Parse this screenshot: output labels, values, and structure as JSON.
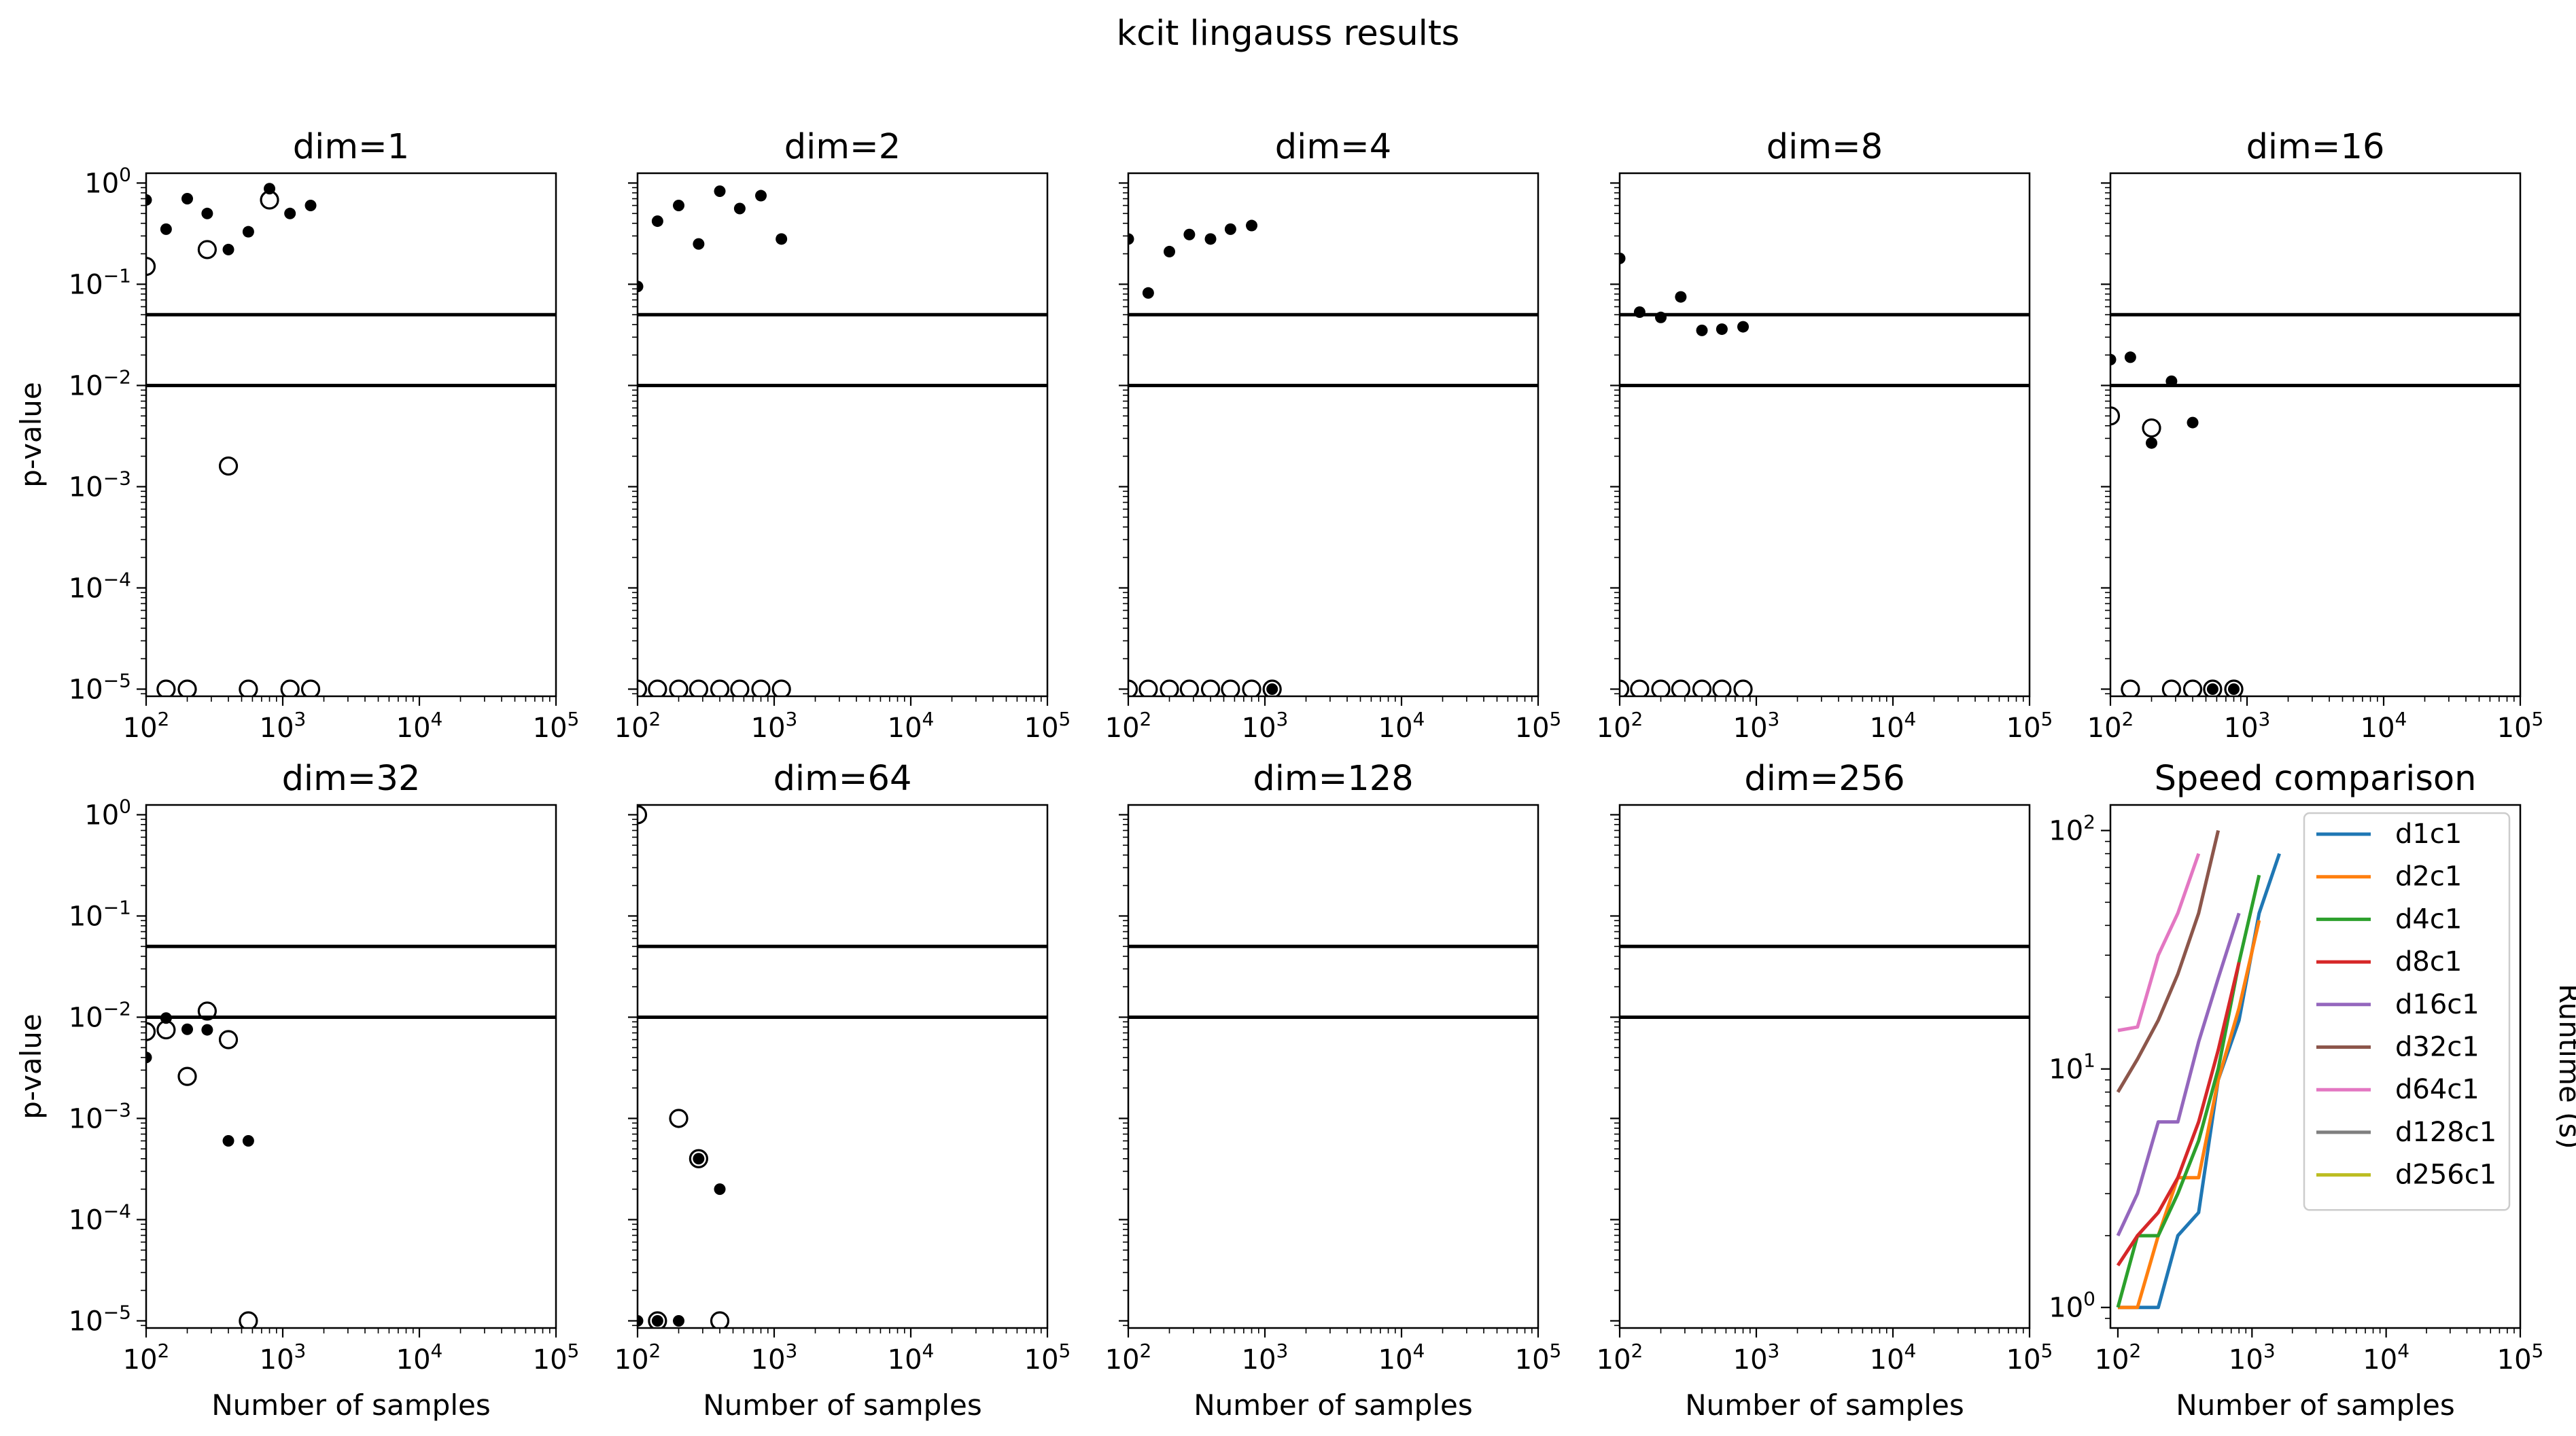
{
  "figure": {
    "title": "kcit lingauss results",
    "line_colors": {
      "d1c1": "#1f77b4",
      "d2c1": "#ff7f0e",
      "d4c1": "#2ca02c",
      "d8c1": "#d62728",
      "d16c1": "#9467bd",
      "d32c1": "#8c564b",
      "d64c1": "#e377c2",
      "d128c1": "#7f7f7f",
      "d256c1": "#bcbd22"
    }
  },
  "chart_data": [
    {
      "type": "scatter",
      "title": "dim=1",
      "xlabel": "",
      "ylabel": "p-value",
      "xscale": "log",
      "yscale": "log",
      "xlim": [
        100,
        100000
      ],
      "ylim": [
        8.5e-06,
        1.25
      ],
      "xticks": [
        "10^2",
        "10^3",
        "10^4",
        "10^5"
      ],
      "yticks": [
        "10^0",
        "10^-1",
        "10^-2",
        "10^-3",
        "10^-4",
        "10^-5"
      ],
      "hlines": [
        0.05,
        0.01
      ],
      "series": [
        {
          "marker": "filled-dot",
          "points": [
            [
              100,
              0.68
            ],
            [
              140,
              0.35
            ],
            [
              200,
              0.7
            ],
            [
              280,
              0.5
            ],
            [
              400,
              0.22
            ],
            [
              560,
              0.33
            ],
            [
              800,
              0.88
            ],
            [
              1130,
              0.5
            ],
            [
              1600,
              0.6
            ]
          ]
        },
        {
          "marker": "open-circle",
          "points": [
            [
              100,
              0.15
            ],
            [
              140,
              1e-05
            ],
            [
              200,
              1e-05
            ],
            [
              280,
              0.22
            ],
            [
              400,
              0.0016
            ],
            [
              560,
              1e-05
            ],
            [
              800,
              0.68
            ],
            [
              1130,
              1e-05
            ],
            [
              1600,
              1e-05
            ]
          ]
        }
      ]
    },
    {
      "type": "scatter",
      "title": "dim=2",
      "xlabel": "",
      "ylabel": "",
      "xscale": "log",
      "yscale": "log",
      "xlim": [
        100,
        100000
      ],
      "ylim": [
        8.5e-06,
        1.25
      ],
      "xticks": [
        "10^2",
        "10^3",
        "10^4",
        "10^5"
      ],
      "yticks": [],
      "hlines": [
        0.05,
        0.01
      ],
      "series": [
        {
          "marker": "filled-dot",
          "points": [
            [
              100,
              0.095
            ],
            [
              140,
              0.42
            ],
            [
              200,
              0.6
            ],
            [
              280,
              0.25
            ],
            [
              400,
              0.83
            ],
            [
              560,
              0.56
            ],
            [
              800,
              0.75
            ],
            [
              1130,
              0.28
            ]
          ]
        },
        {
          "marker": "open-circle",
          "points": [
            [
              100,
              1e-05
            ],
            [
              140,
              1e-05
            ],
            [
              200,
              1e-05
            ],
            [
              280,
              1e-05
            ],
            [
              400,
              1e-05
            ],
            [
              560,
              1e-05
            ],
            [
              800,
              1e-05
            ],
            [
              1130,
              1e-05
            ]
          ]
        }
      ]
    },
    {
      "type": "scatter",
      "title": "dim=4",
      "xlabel": "",
      "ylabel": "",
      "xscale": "log",
      "yscale": "log",
      "xlim": [
        100,
        100000
      ],
      "ylim": [
        8.5e-06,
        1.25
      ],
      "xticks": [
        "10^2",
        "10^3",
        "10^4",
        "10^5"
      ],
      "yticks": [],
      "hlines": [
        0.05,
        0.01
      ],
      "series": [
        {
          "marker": "filled-dot",
          "points": [
            [
              100,
              0.28
            ],
            [
              140,
              0.082
            ],
            [
              200,
              0.21
            ],
            [
              280,
              0.31
            ],
            [
              400,
              0.28
            ],
            [
              560,
              0.35
            ],
            [
              800,
              0.38
            ],
            [
              1130,
              1e-05
            ]
          ]
        },
        {
          "marker": "open-circle",
          "points": [
            [
              100,
              1e-05
            ],
            [
              140,
              1e-05
            ],
            [
              200,
              1e-05
            ],
            [
              280,
              1e-05
            ],
            [
              400,
              1e-05
            ],
            [
              560,
              1e-05
            ],
            [
              800,
              1e-05
            ],
            [
              1130,
              1e-05
            ]
          ]
        }
      ]
    },
    {
      "type": "scatter",
      "title": "dim=8",
      "xlabel": "",
      "ylabel": "",
      "xscale": "log",
      "yscale": "log",
      "xlim": [
        100,
        100000
      ],
      "ylim": [
        8.5e-06,
        1.25
      ],
      "xticks": [
        "10^2",
        "10^3",
        "10^4",
        "10^5"
      ],
      "yticks": [],
      "hlines": [
        0.05,
        0.01
      ],
      "series": [
        {
          "marker": "filled-dot",
          "points": [
            [
              100,
              0.18
            ],
            [
              140,
              0.053
            ],
            [
              200,
              0.047
            ],
            [
              280,
              0.075
            ],
            [
              400,
              0.035
            ],
            [
              560,
              0.036
            ],
            [
              800,
              0.038
            ]
          ]
        },
        {
          "marker": "open-circle",
          "points": [
            [
              100,
              1e-05
            ],
            [
              140,
              1e-05
            ],
            [
              200,
              1e-05
            ],
            [
              280,
              1e-05
            ],
            [
              400,
              1e-05
            ],
            [
              560,
              1e-05
            ],
            [
              800,
              1e-05
            ]
          ]
        }
      ]
    },
    {
      "type": "scatter",
      "title": "dim=16",
      "xlabel": "",
      "ylabel": "",
      "xscale": "log",
      "yscale": "log",
      "xlim": [
        100,
        100000
      ],
      "ylim": [
        8.5e-06,
        1.25
      ],
      "xticks": [
        "10^2",
        "10^3",
        "10^4",
        "10^5"
      ],
      "yticks": [],
      "hlines": [
        0.05,
        0.01
      ],
      "series": [
        {
          "marker": "filled-dot",
          "points": [
            [
              100,
              0.018
            ],
            [
              140,
              0.019
            ],
            [
              200,
              0.0027
            ],
            [
              280,
              0.011
            ],
            [
              400,
              0.0043
            ],
            [
              560,
              1e-05
            ],
            [
              800,
              1e-05
            ]
          ]
        },
        {
          "marker": "open-circle",
          "points": [
            [
              100,
              0.005
            ],
            [
              140,
              1e-05
            ],
            [
              200,
              0.0038
            ],
            [
              280,
              1e-05
            ],
            [
              400,
              1e-05
            ],
            [
              560,
              1e-05
            ],
            [
              800,
              1e-05
            ]
          ]
        }
      ]
    },
    {
      "type": "scatter",
      "title": "dim=32",
      "xlabel": "Number of samples",
      "ylabel": "p-value",
      "xscale": "log",
      "yscale": "log",
      "xlim": [
        100,
        100000
      ],
      "ylim": [
        8.5e-06,
        1.25
      ],
      "xticks": [
        "10^2",
        "10^3",
        "10^4",
        "10^5"
      ],
      "yticks": [
        "10^0",
        "10^-1",
        "10^-2",
        "10^-3",
        "10^-4",
        "10^-5"
      ],
      "hlines": [
        0.05,
        0.01
      ],
      "series": [
        {
          "marker": "filled-dot",
          "points": [
            [
              100,
              0.004
            ],
            [
              140,
              0.0098
            ],
            [
              200,
              0.0076
            ],
            [
              280,
              0.0075
            ],
            [
              400,
              0.0006
            ],
            [
              560,
              0.0006
            ]
          ]
        },
        {
          "marker": "open-circle",
          "points": [
            [
              100,
              0.0072
            ],
            [
              140,
              0.0075
            ],
            [
              200,
              0.0026
            ],
            [
              280,
              0.0115
            ],
            [
              400,
              0.006
            ],
            [
              560,
              1e-05
            ]
          ]
        }
      ]
    },
    {
      "type": "scatter",
      "title": "dim=64",
      "xlabel": "Number of samples",
      "ylabel": "",
      "xscale": "log",
      "yscale": "log",
      "xlim": [
        100,
        100000
      ],
      "ylim": [
        8.5e-06,
        1.25
      ],
      "xticks": [
        "10^2",
        "10^3",
        "10^4",
        "10^5"
      ],
      "yticks": [],
      "hlines": [
        0.05,
        0.01
      ],
      "series": [
        {
          "marker": "filled-dot",
          "points": [
            [
              100,
              1e-05
            ],
            [
              140,
              1e-05
            ],
            [
              200,
              1e-05
            ],
            [
              280,
              0.0004
            ],
            [
              400,
              0.0002
            ]
          ]
        },
        {
          "marker": "open-circle",
          "points": [
            [
              100,
              1.0
            ],
            [
              140,
              1e-05
            ],
            [
              200,
              0.001
            ],
            [
              280,
              0.0004
            ],
            [
              400,
              1e-05
            ]
          ]
        }
      ]
    },
    {
      "type": "scatter",
      "title": "dim=128",
      "xlabel": "Number of samples",
      "ylabel": "",
      "xscale": "log",
      "yscale": "log",
      "xlim": [
        100,
        100000
      ],
      "ylim": [
        8.5e-06,
        1.25
      ],
      "xticks": [
        "10^2",
        "10^3",
        "10^4",
        "10^5"
      ],
      "yticks": [],
      "hlines": [
        0.05,
        0.01
      ],
      "series": []
    },
    {
      "type": "scatter",
      "title": "dim=256",
      "xlabel": "Number of samples",
      "ylabel": "",
      "xscale": "log",
      "yscale": "log",
      "xlim": [
        100,
        100000
      ],
      "ylim": [
        8.5e-06,
        1.25
      ],
      "xticks": [
        "10^2",
        "10^3",
        "10^4",
        "10^5"
      ],
      "yticks": [],
      "hlines": [
        0.05,
        0.01
      ],
      "series": []
    },
    {
      "type": "line",
      "title": "Speed comparison",
      "xlabel": "Number of samples",
      "ylabel": "Runtime (s)",
      "ylabel_position": "right",
      "xscale": "log",
      "yscale": "log",
      "xlim": [
        88,
        100000
      ],
      "ylim": [
        0.82,
        128
      ],
      "xticks": [
        "10^2",
        "10^3",
        "10^4",
        "10^5"
      ],
      "yticks": [
        "10^2",
        "10^1",
        "10^0"
      ],
      "legend": "top-right",
      "series": [
        {
          "name": "d1c1",
          "x": [
            100,
            140,
            200,
            280,
            400,
            560,
            800,
            1130,
            1600
          ],
          "values": [
            1,
            1,
            1,
            2,
            2.5,
            9,
            16,
            45,
            80
          ]
        },
        {
          "name": "d2c1",
          "x": [
            100,
            140,
            200,
            280,
            400,
            560,
            800,
            1130
          ],
          "values": [
            1,
            1,
            2,
            3.5,
            3.5,
            9,
            18,
            42
          ]
        },
        {
          "name": "d4c1",
          "x": [
            100,
            140,
            200,
            280,
            400,
            560,
            800,
            1130
          ],
          "values": [
            1,
            2,
            2,
            3,
            5,
            10,
            28,
            65
          ]
        },
        {
          "name": "d8c1",
          "x": [
            100,
            140,
            200,
            280,
            400,
            560,
            800
          ],
          "values": [
            1.5,
            2,
            2.5,
            3.5,
            6,
            12,
            28
          ]
        },
        {
          "name": "d16c1",
          "x": [
            100,
            140,
            200,
            280,
            400,
            560,
            800
          ],
          "values": [
            2,
            3,
            6,
            6,
            13,
            24,
            45
          ]
        },
        {
          "name": "d32c1",
          "x": [
            100,
            140,
            200,
            280,
            400,
            560
          ],
          "values": [
            8,
            11,
            16,
            25,
            45,
            100
          ]
        },
        {
          "name": "d64c1",
          "x": [
            100,
            140,
            200,
            280,
            400
          ],
          "values": [
            14.5,
            15,
            30,
            45,
            80
          ]
        },
        {
          "name": "d128c1",
          "x": [],
          "values": []
        },
        {
          "name": "d256c1",
          "x": [],
          "values": []
        }
      ]
    }
  ]
}
